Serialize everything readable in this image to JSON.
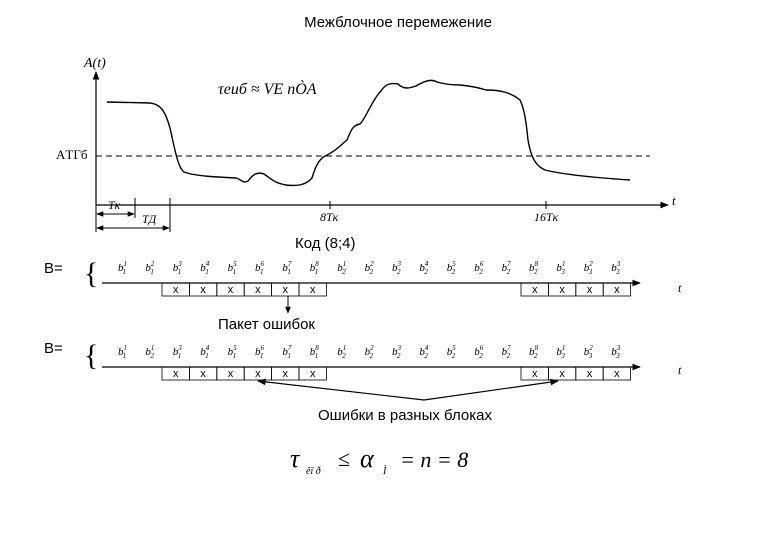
{
  "title": "Межблочное перемежение",
  "top_plot": {
    "y_axis_label": "A(t)",
    "x_axis_label": "t",
    "threshold_label": "AТГб",
    "formula": "τеиб ≈ VЕ nÒА",
    "t_k_label": "Tк",
    "t_d_label": "TД",
    "tick_8_label": "8Tк",
    "tick_16_label": "16Tк"
  },
  "code_label": "Код (8;4)",
  "row1_prefix": "B=",
  "row2_prefix": "B=",
  "row_axis_label": "t",
  "packet_label": "Пакет ошибок",
  "errors_label": "Ошибки в разных блоках",
  "error_mark": "x",
  "bottom_formula": {
    "tau": "τ",
    "tau_sub": "êî ð",
    "relation": "≤",
    "alpha": "α",
    "alpha_sub": "Ì",
    "rest": "= n = 8"
  },
  "symbols_row1": [
    {
      "sub": "1",
      "sup": "1"
    },
    {
      "sub": "1",
      "sup": "2"
    },
    {
      "sub": "1",
      "sup": "3"
    },
    {
      "sub": "1",
      "sup": "4"
    },
    {
      "sub": "1",
      "sup": "5"
    },
    {
      "sub": "1",
      "sup": "6"
    },
    {
      "sub": "1",
      "sup": "7"
    },
    {
      "sub": "1",
      "sup": "8"
    },
    {
      "sub": "2",
      "sup": "1"
    },
    {
      "sub": "2",
      "sup": "2"
    },
    {
      "sub": "2",
      "sup": "3"
    },
    {
      "sub": "2",
      "sup": "4"
    },
    {
      "sub": "2",
      "sup": "5"
    },
    {
      "sub": "2",
      "sup": "6"
    },
    {
      "sub": "2",
      "sup": "7"
    },
    {
      "sub": "2",
      "sup": "8"
    },
    {
      "sub": "3",
      "sup": "1"
    },
    {
      "sub": "3",
      "sup": "2"
    },
    {
      "sub": "3",
      "sup": "3"
    }
  ],
  "symbols_row2": [
    {
      "sub": "1",
      "sup": "1"
    },
    {
      "sub": "2",
      "sup": "1"
    },
    {
      "sub": "1",
      "sup": "3"
    },
    {
      "sub": "1",
      "sup": "4"
    },
    {
      "sub": "1",
      "sup": "5"
    },
    {
      "sub": "1",
      "sup": "6"
    },
    {
      "sub": "1",
      "sup": "7"
    },
    {
      "sub": "1",
      "sup": "8"
    },
    {
      "sub": "2",
      "sup": "1"
    },
    {
      "sub": "2",
      "sup": "2"
    },
    {
      "sub": "2",
      "sup": "3"
    },
    {
      "sub": "2",
      "sup": "4"
    },
    {
      "sub": "2",
      "sup": "5"
    },
    {
      "sub": "2",
      "sup": "6"
    },
    {
      "sub": "2",
      "sup": "7"
    },
    {
      "sub": "2",
      "sup": "8"
    },
    {
      "sub": "3",
      "sup": "1"
    },
    {
      "sub": "3",
      "sup": "2"
    },
    {
      "sub": "3",
      "sup": "3"
    }
  ]
}
